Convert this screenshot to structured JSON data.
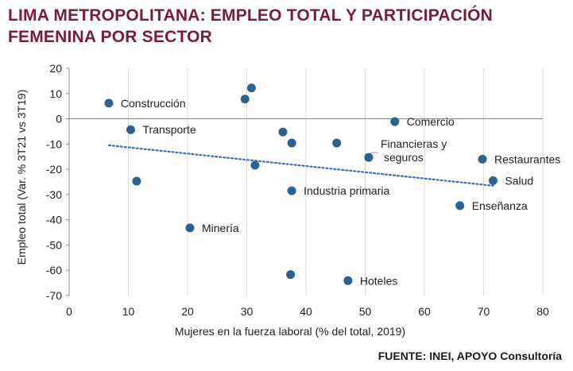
{
  "title_line1": "LIMA METROPOLITANA: EMPLEO TOTAL Y PARTICIPACIÓN",
  "title_line2": "FEMENINA POR SECTOR",
  "source": "FUENTE: INEI, APOYO Consultoría",
  "colors": {
    "title": "#7a1a3c",
    "marker": "#2e6190",
    "trendline": "#3a6fbf",
    "grid": "#d9d9d9"
  },
  "chart_data": {
    "type": "scatter",
    "xlabel": "Mujeres en la fuerza laboral (% del total, 2019)",
    "ylabel": "Empleo total (Var. % 3T21 vs 3T19)",
    "xlim": [
      0,
      80
    ],
    "ylim": [
      -70,
      20
    ],
    "xticks": [
      0,
      10,
      20,
      30,
      40,
      50,
      60,
      70,
      80
    ],
    "yticks": [
      -70,
      -60,
      -50,
      -40,
      -30,
      -20,
      -10,
      0,
      10,
      20
    ],
    "grid": "vertical",
    "points": [
      {
        "x": 6.7,
        "y": 6.2,
        "label": "Construcción"
      },
      {
        "x": 10.4,
        "y": -4.3,
        "label": "Transporte"
      },
      {
        "x": 11.4,
        "y": -24.7,
        "label": ""
      },
      {
        "x": 20.4,
        "y": -43.2,
        "label": "Minería"
      },
      {
        "x": 29.7,
        "y": 7.8,
        "label": ""
      },
      {
        "x": 30.8,
        "y": 12.2,
        "label": ""
      },
      {
        "x": 31.4,
        "y": -18.4,
        "label": ""
      },
      {
        "x": 36.1,
        "y": -5.2,
        "label": ""
      },
      {
        "x": 37.6,
        "y": -9.6,
        "label": ""
      },
      {
        "x": 37.6,
        "y": -28.5,
        "label": "Industria primaria"
      },
      {
        "x": 37.4,
        "y": -61.7,
        "label": ""
      },
      {
        "x": 45.2,
        "y": -9.6,
        "label": ""
      },
      {
        "x": 47.1,
        "y": -64.1,
        "label": "Hoteles"
      },
      {
        "x": 50.6,
        "y": -15.3,
        "label": "Financieras y\nseguros"
      },
      {
        "x": 55.0,
        "y": -1.1,
        "label": "Comercio"
      },
      {
        "x": 66.0,
        "y": -34.4,
        "label": "Enseñanza"
      },
      {
        "x": 69.8,
        "y": -16.0,
        "label": "Restaurantes"
      },
      {
        "x": 71.6,
        "y": -24.5,
        "label": "Salud"
      }
    ],
    "trendline": {
      "style": "dotted",
      "x": [
        6.7,
        71.6
      ],
      "y": [
        -10.5,
        -26.5
      ]
    }
  }
}
